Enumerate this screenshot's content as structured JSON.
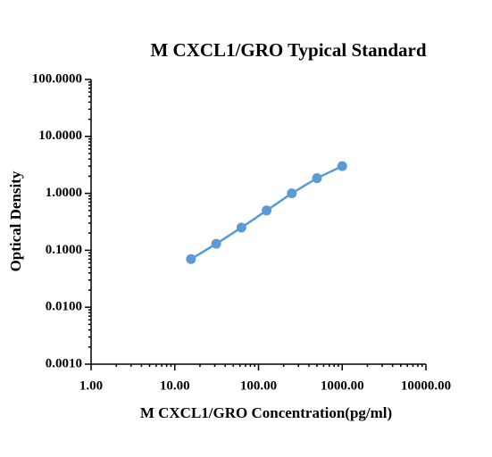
{
  "chart_data": {
    "type": "line",
    "title": "M CXCL1/GRO Typical Standard",
    "xlabel": "M CXCL1/GRO Concentration(pg/ml)",
    "ylabel": "Optical Density",
    "x": [
      15.6,
      31.25,
      62.5,
      125,
      250,
      500,
      1000
    ],
    "series": [
      {
        "color": "#5b9bd5",
        "values": [
          0.07,
          0.13,
          0.25,
          0.5,
          1.0,
          1.85,
          3.0
        ]
      }
    ],
    "xscale": "log",
    "yscale": "log",
    "xlim": [
      1,
      10000
    ],
    "ylim": [
      0.001,
      100
    ],
    "xticks": [
      {
        "value": 1,
        "label": "1.00"
      },
      {
        "value": 10,
        "label": "10.00"
      },
      {
        "value": 100,
        "label": "100.00"
      },
      {
        "value": 1000,
        "label": "1000.00"
      },
      {
        "value": 10000,
        "label": "10000.00"
      }
    ],
    "yticks": [
      {
        "value": 0.001,
        "label": "0.0010"
      },
      {
        "value": 0.01,
        "label": "0.0100"
      },
      {
        "value": 0.1,
        "label": "0.1000"
      },
      {
        "value": 1,
        "label": "1.0000"
      },
      {
        "value": 10,
        "label": "10.0000"
      },
      {
        "value": 100,
        "label": "100.0000"
      }
    ]
  }
}
